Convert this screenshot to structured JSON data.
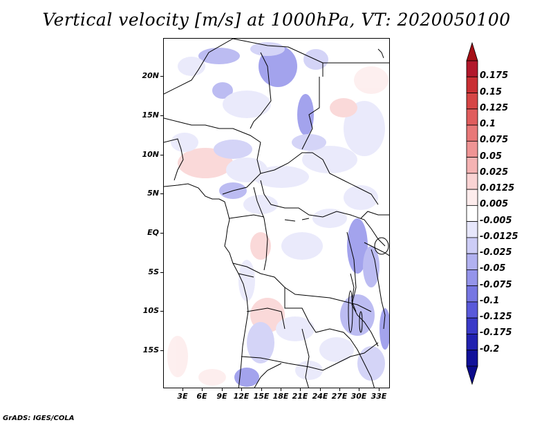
{
  "title": "Vertical velocity [m/s] at 1000hPa, VT: 2020050100",
  "footer": "GrADS: IGES/COLA",
  "map": {
    "region": "Central Africa",
    "lat_labels": [
      "20N",
      "15N",
      "10N",
      "5N",
      "EQ",
      "5S",
      "10S",
      "15S"
    ],
    "lon_labels": [
      "3E",
      "6E",
      "9E",
      "12E",
      "15E",
      "18E",
      "21E",
      "24E",
      "27E",
      "30E",
      "33E"
    ]
  },
  "colorbar": {
    "labels": [
      "0.175",
      "0.15",
      "0.125",
      "0.1",
      "0.075",
      "0.05",
      "0.025",
      "0.0125",
      "0.005",
      "-0.005",
      "-0.0125",
      "-0.025",
      "-0.05",
      "-0.075",
      "-0.1",
      "-0.125",
      "-0.175",
      "-0.2"
    ],
    "colors": [
      "#b2182b",
      "#c92f33",
      "#d64545",
      "#e05d5d",
      "#e87878",
      "#ef9494",
      "#f5b3b3",
      "#fad3d3",
      "#fdecec",
      "#ffffff",
      "#e7e7fb",
      "#cdcdf6",
      "#b1b1f0",
      "#9494ea",
      "#7676e2",
      "#5959da",
      "#3a3ac8",
      "#2222b0",
      "#11119a"
    ],
    "arrow_top_color": "#a50f15",
    "arrow_bottom_color": "#0b0b8c"
  }
}
